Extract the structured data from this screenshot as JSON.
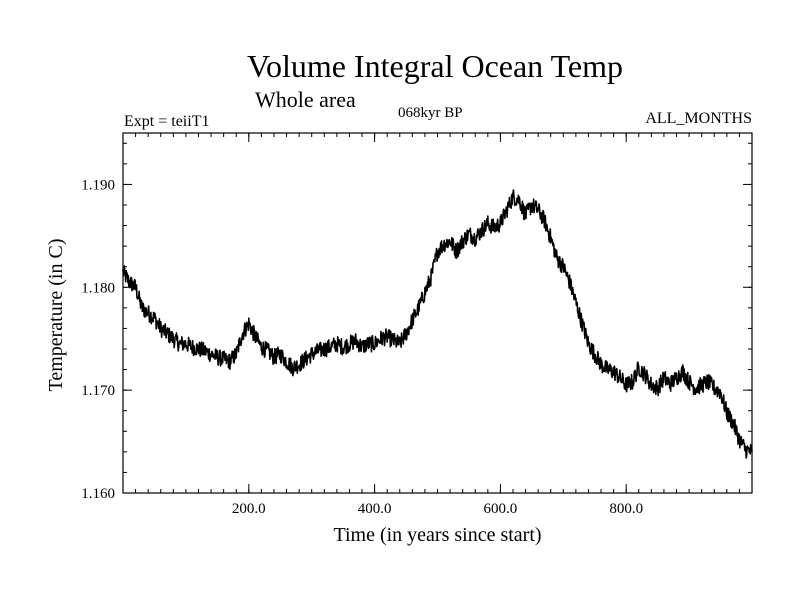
{
  "header": {
    "title": "Volume Integral Ocean Temp",
    "subtitle": "Whole area",
    "experiment": "Expt = teiiT1",
    "period": "068kyr BP",
    "months": "ALL_MONTHS"
  },
  "chart_data": {
    "type": "line",
    "title": "Volume Integral Ocean Temp",
    "subtitle": "Whole area",
    "xlabel": "Time (in years since start)",
    "ylabel": "Temperature (in C)",
    "xlim": [
      0,
      1000
    ],
    "ylim": [
      1.16,
      1.195
    ],
    "x_ticks": [
      200,
      400,
      600,
      800
    ],
    "x_tick_labels": [
      "200.0",
      "400.0",
      "600.0",
      "800.0"
    ],
    "y_ticks": [
      1.16,
      1.17,
      1.18,
      1.19
    ],
    "y_tick_labels": [
      "1.160",
      "1.170",
      "1.180",
      "1.190"
    ],
    "x_minor_step": 20,
    "y_minor_step": 0.002,
    "grid": false,
    "series": [
      {
        "name": "teiiT1",
        "x": [
          0,
          10,
          20,
          30,
          40,
          50,
          60,
          70,
          80,
          90,
          100,
          110,
          120,
          130,
          140,
          150,
          160,
          170,
          180,
          190,
          200,
          210,
          220,
          230,
          240,
          250,
          260,
          270,
          280,
          290,
          300,
          310,
          320,
          330,
          340,
          350,
          360,
          370,
          380,
          390,
          400,
          410,
          420,
          430,
          440,
          450,
          460,
          470,
          480,
          490,
          500,
          510,
          520,
          530,
          540,
          550,
          560,
          570,
          580,
          590,
          600,
          610,
          620,
          630,
          640,
          650,
          660,
          670,
          680,
          690,
          700,
          710,
          720,
          730,
          740,
          750,
          760,
          770,
          780,
          790,
          800,
          810,
          820,
          830,
          840,
          850,
          860,
          870,
          880,
          890,
          900,
          910,
          920,
          930,
          940,
          950,
          960,
          970,
          980,
          990,
          1000
        ],
        "values": [
          1.1815,
          1.1805,
          1.18,
          1.178,
          1.1775,
          1.177,
          1.176,
          1.1755,
          1.175,
          1.1745,
          1.1745,
          1.1742,
          1.174,
          1.1738,
          1.1735,
          1.1732,
          1.173,
          1.1728,
          1.1735,
          1.1755,
          1.1765,
          1.1752,
          1.1742,
          1.1738,
          1.1732,
          1.1735,
          1.1728,
          1.1722,
          1.1725,
          1.173,
          1.1735,
          1.1738,
          1.174,
          1.1742,
          1.1745,
          1.1742,
          1.1745,
          1.1748,
          1.1742,
          1.1745,
          1.1745,
          1.175,
          1.1752,
          1.1748,
          1.1745,
          1.1755,
          1.1768,
          1.178,
          1.1795,
          1.181,
          1.1835,
          1.1842,
          1.1845,
          1.1835,
          1.1845,
          1.1852,
          1.1848,
          1.1855,
          1.1862,
          1.1858,
          1.1862,
          1.1875,
          1.1888,
          1.1885,
          1.187,
          1.188,
          1.1875,
          1.1865,
          1.1848,
          1.1828,
          1.182,
          1.1805,
          1.1785,
          1.1765,
          1.1745,
          1.1735,
          1.1725,
          1.172,
          1.1718,
          1.1712,
          1.1705,
          1.1708,
          1.1722,
          1.1715,
          1.1705,
          1.1702,
          1.1712,
          1.1706,
          1.1712,
          1.1718,
          1.1708,
          1.1702,
          1.1705,
          1.1708,
          1.1702,
          1.1698,
          1.1678,
          1.1668,
          1.1652,
          1.1642,
          1.164
        ]
      }
    ]
  }
}
